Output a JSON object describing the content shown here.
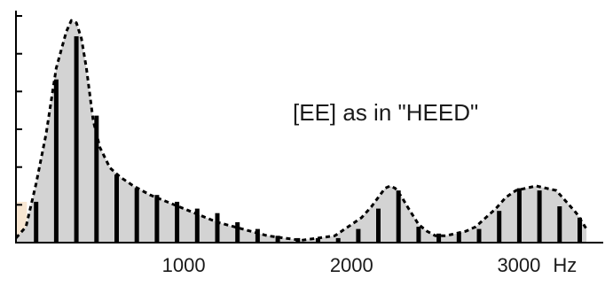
{
  "chart_data": {
    "type": "bar",
    "title": "",
    "xlabel": "",
    "ylabel": "",
    "x_unit": "Hz",
    "xlim": [
      0,
      3500
    ],
    "ylim": [
      0,
      100
    ],
    "x_ticks": [
      1000,
      2000,
      3000
    ],
    "y_tick_count": 6,
    "grid": false,
    "annotation": "[EE] as in \"HEED\"",
    "colors": {
      "envelope_fill": "#d3d3d3",
      "bars": "#000000",
      "envelope_line": "#000000",
      "tint": "#f7e6d2"
    },
    "harmonics": {
      "x": [
        120,
        240,
        360,
        480,
        600,
        720,
        840,
        960,
        1080,
        1200,
        1320,
        1440,
        1560,
        1680,
        1800,
        1920,
        2040,
        2160,
        2280,
        2400,
        2520,
        2640,
        2760,
        2880,
        3000,
        3120,
        3240,
        3360
      ],
      "values": [
        18,
        72,
        91,
        56,
        30,
        24,
        21,
        18,
        15,
        13,
        9,
        6,
        3,
        2,
        2,
        2,
        6,
        15,
        23,
        7,
        4,
        4,
        6,
        14,
        24,
        23,
        16,
        11
      ]
    },
    "envelope": {
      "x": [
        0,
        60,
        120,
        180,
        240,
        300,
        330,
        360,
        390,
        420,
        460,
        500,
        560,
        620,
        700,
        800,
        900,
        1000,
        1100,
        1200,
        1300,
        1400,
        1500,
        1600,
        1700,
        1800,
        1900,
        2000,
        2060,
        2120,
        2170,
        2200,
        2230,
        2260,
        2300,
        2340,
        2400,
        2450,
        2500,
        2560,
        2620,
        2680,
        2740,
        2800,
        2860,
        2920,
        2980,
        3040,
        3100,
        3160,
        3220,
        3280,
        3340,
        3400
      ],
      "values": [
        2,
        7,
        26,
        48,
        77,
        93,
        98,
        97,
        90,
        77,
        54,
        42,
        33,
        29,
        25,
        21,
        18,
        15,
        12,
        9,
        7,
        5,
        3,
        2,
        1,
        2,
        3,
        8,
        11,
        16,
        21,
        24,
        25,
        24,
        20,
        15,
        8,
        5,
        3,
        3,
        4,
        5,
        7,
        11,
        15,
        20,
        23,
        24,
        25,
        24,
        23,
        18,
        13,
        6
      ]
    }
  }
}
